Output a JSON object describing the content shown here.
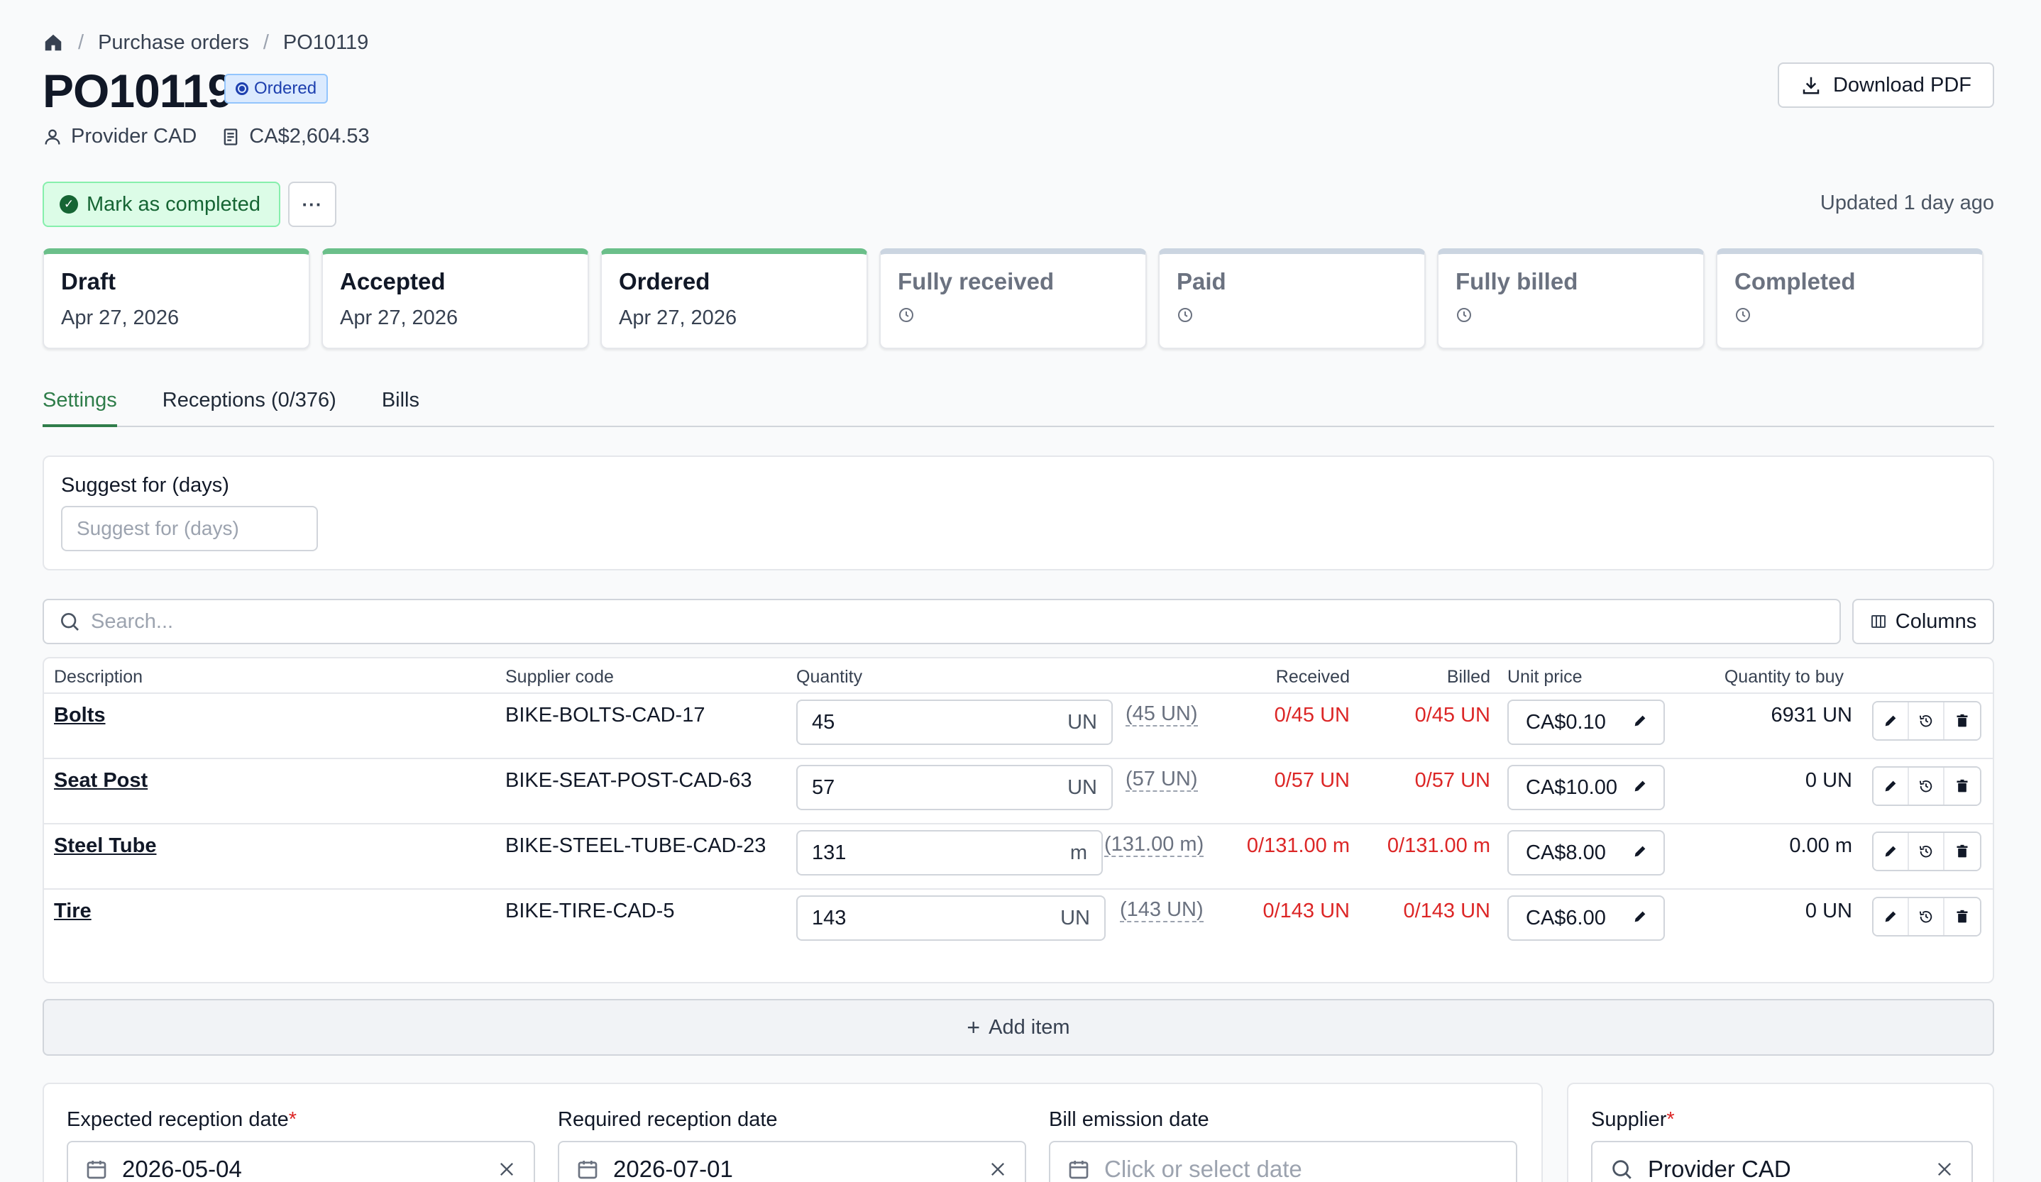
{
  "breadcrumb": {
    "parent": "Purchase orders",
    "current": "PO10119"
  },
  "header": {
    "title": "PO10119",
    "status": "Ordered",
    "supplier": "Provider CAD",
    "total": "CA$2,604.53",
    "download_label": "Download PDF",
    "complete_label": "Mark as completed",
    "more_label": "···",
    "updated": "Updated 1 day ago"
  },
  "steps": [
    {
      "label": "Draft",
      "date": "Apr 27, 2026",
      "done": true
    },
    {
      "label": "Accepted",
      "date": "Apr 27, 2026",
      "done": true
    },
    {
      "label": "Ordered",
      "date": "Apr 27, 2026",
      "done": true
    },
    {
      "label": "Fully received",
      "date": "",
      "done": false
    },
    {
      "label": "Paid",
      "date": "",
      "done": false
    },
    {
      "label": "Fully billed",
      "date": "",
      "done": false
    },
    {
      "label": "Completed",
      "date": "",
      "done": false
    }
  ],
  "tabs": [
    {
      "label": "Settings",
      "active": true
    },
    {
      "label": "Receptions (0/376)",
      "active": false
    },
    {
      "label": "Bills",
      "active": false
    }
  ],
  "suggest": {
    "label": "Suggest for (days)",
    "placeholder": "Suggest for (days)"
  },
  "search": {
    "placeholder": "Search...",
    "columns_label": "Columns"
  },
  "table": {
    "headers": {
      "description": "Description",
      "supplier_code": "Supplier code",
      "quantity": "Quantity",
      "received": "Received",
      "billed": "Billed",
      "unit_price": "Unit price",
      "to_buy": "Quantity to buy"
    },
    "rows": [
      {
        "description": "Bolts",
        "code": "BIKE-BOLTS-CAD-17",
        "qty": "45",
        "unit": "UN",
        "hint": "(45 UN)",
        "received": "0/45 UN",
        "billed": "0/45 UN",
        "price": "CA$0.10",
        "to_buy": "6931 UN"
      },
      {
        "description": "Seat Post",
        "code": "BIKE-SEAT-POST-CAD-63",
        "qty": "57",
        "unit": "UN",
        "hint": "(57 UN)",
        "received": "0/57 UN",
        "billed": "0/57 UN",
        "price": "CA$10.00",
        "to_buy": "0 UN"
      },
      {
        "description": "Steel Tube",
        "code": "BIKE-STEEL-TUBE-CAD-23",
        "qty": "131",
        "unit": "m",
        "hint": "(131.00 m)",
        "received": "0/131.00 m",
        "billed": "0/131.00 m",
        "price": "CA$8.00",
        "to_buy": "0.00 m"
      },
      {
        "description": "Tire",
        "code": "BIKE-TIRE-CAD-5",
        "qty": "143",
        "unit": "UN",
        "hint": "(143 UN)",
        "received": "0/143 UN",
        "billed": "0/143 UN",
        "price": "CA$6.00",
        "to_buy": "0 UN"
      }
    ]
  },
  "add_item_label": "Add item",
  "dates": {
    "expected": {
      "label": "Expected reception date",
      "value": "2026-05-04"
    },
    "required": {
      "label": "Required reception date",
      "value": "2026-07-01"
    },
    "bill": {
      "label": "Bill emission date",
      "placeholder": "Click or select date"
    }
  },
  "supplier_field": {
    "label": "Supplier",
    "value": "Provider CAD"
  },
  "colors": {
    "accent": "#2f7d4a",
    "error": "#dc2626",
    "badge": "#1e40af"
  }
}
